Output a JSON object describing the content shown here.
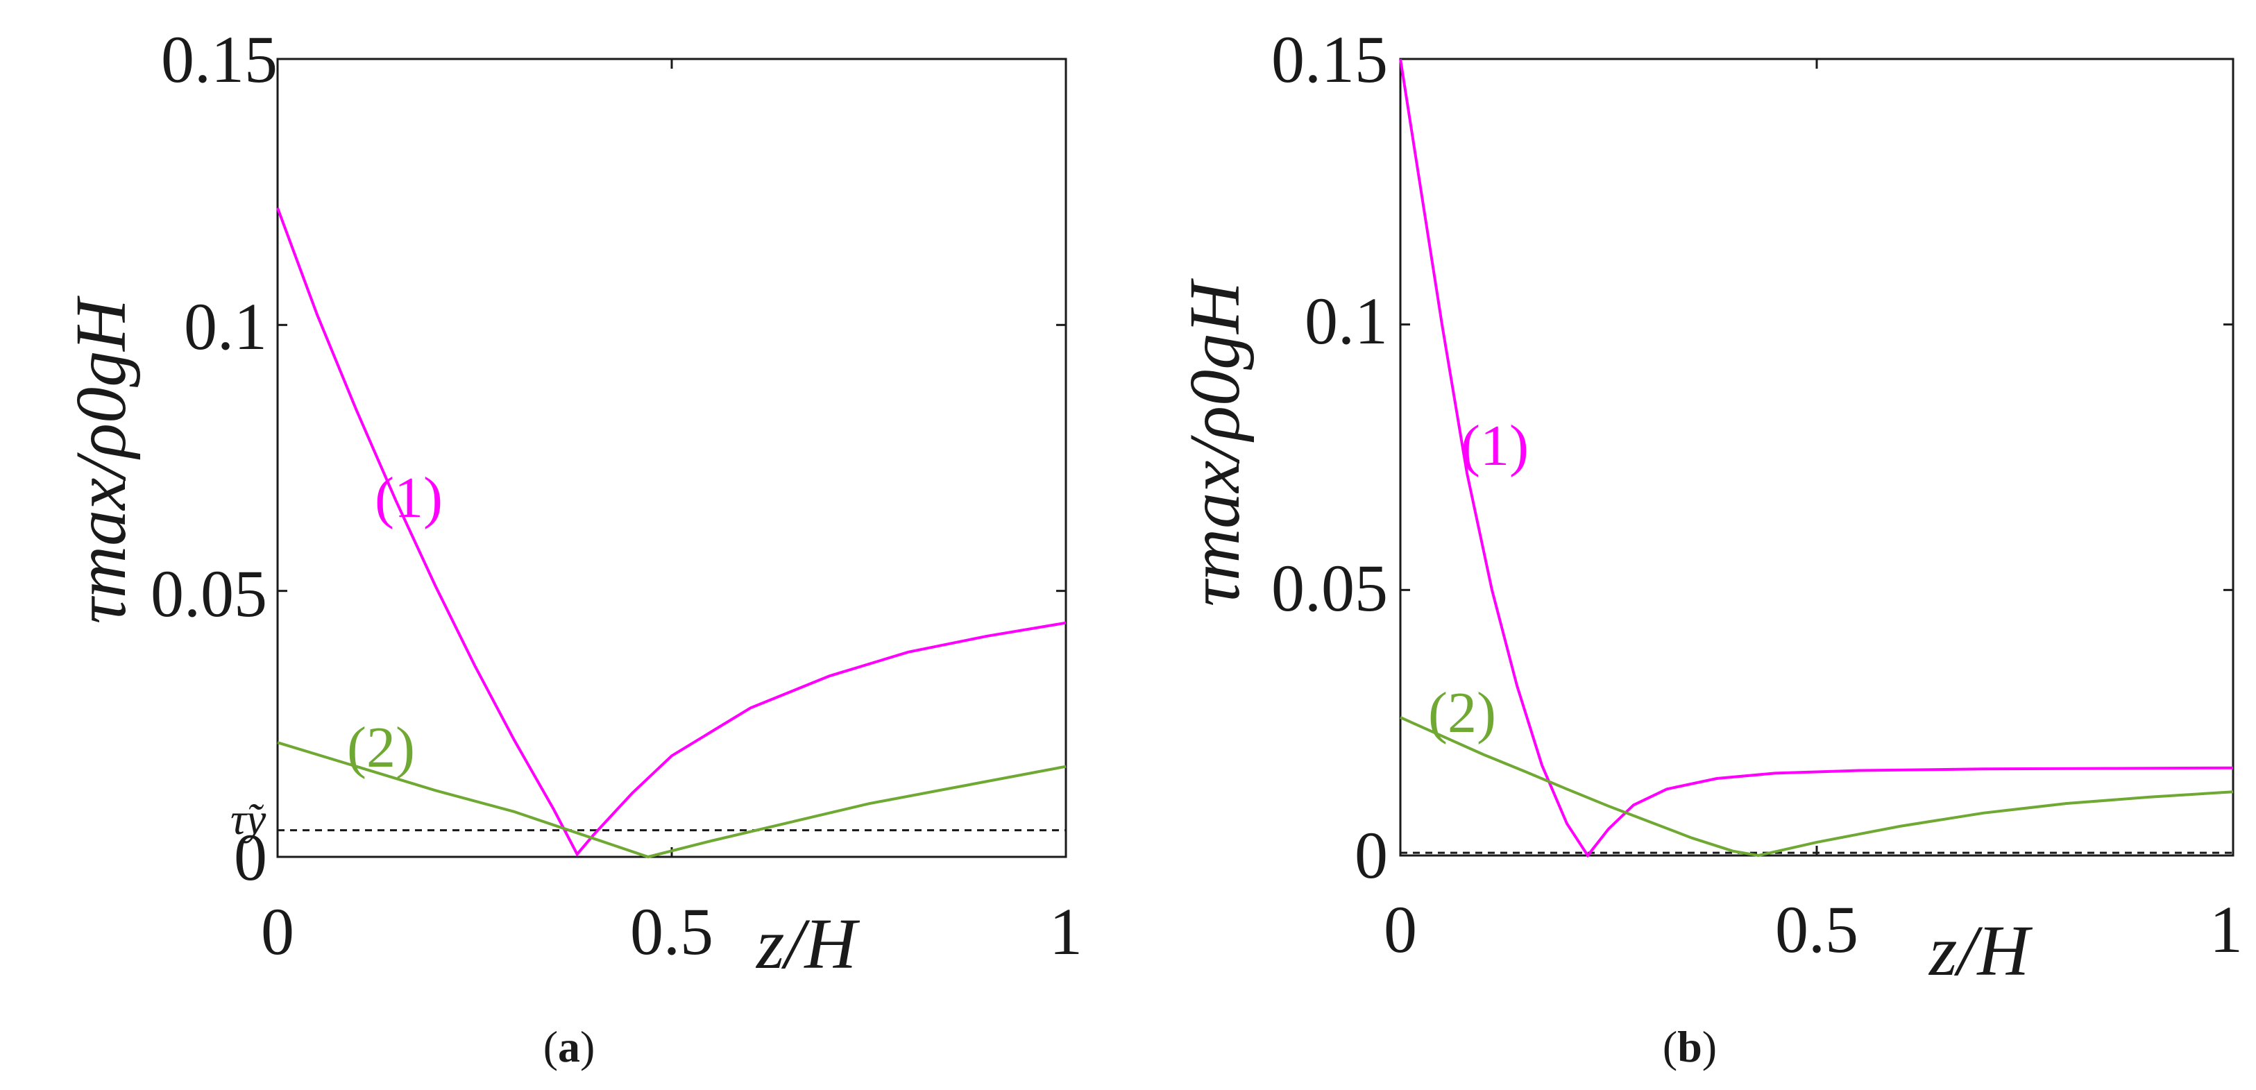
{
  "chart_data": [
    {
      "type": "line",
      "panel": "(a)",
      "panel_letter": "a",
      "xlabel": "z/H",
      "ylabel": "τmax/ρ0gH",
      "xlim": [
        0,
        1
      ],
      "ylim": [
        0,
        0.15
      ],
      "xticks": [
        "0",
        "0.5",
        "1"
      ],
      "yticks": [
        "0",
        "0.05",
        "0.1",
        "0.15"
      ],
      "threshold": {
        "label": "τ̃y",
        "value": 0.005,
        "style": "dashed"
      },
      "series": [
        {
          "name": "(1)",
          "color": "#ff00ff",
          "x": [
            0,
            0.05,
            0.1,
            0.15,
            0.2,
            0.25,
            0.3,
            0.35,
            0.38,
            0.4,
            0.45,
            0.5,
            0.6,
            0.7,
            0.8,
            0.9,
            1.0
          ],
          "y": [
            0.122,
            0.102,
            0.084,
            0.067,
            0.051,
            0.036,
            0.022,
            0.009,
            0.0005,
            0.004,
            0.012,
            0.019,
            0.028,
            0.034,
            0.0385,
            0.0415,
            0.044
          ]
        },
        {
          "name": "(2)",
          "color": "#6fa832",
          "x": [
            0,
            0.1,
            0.2,
            0.3,
            0.4,
            0.47,
            0.55,
            0.65,
            0.75,
            0.85,
            1.0
          ],
          "y": [
            0.0215,
            0.017,
            0.0125,
            0.0085,
            0.0035,
            0.0,
            0.003,
            0.0065,
            0.01,
            0.0128,
            0.017
          ]
        }
      ]
    },
    {
      "type": "line",
      "panel": "(b)",
      "panel_letter": "b",
      "xlabel": "z/H",
      "ylabel": "τmax/ρ0gH",
      "xlim": [
        0,
        1
      ],
      "ylim": [
        0,
        0.15
      ],
      "xticks": [
        "0",
        "0.5",
        "1"
      ],
      "yticks": [
        "0",
        "0.05",
        "0.1",
        "0.15"
      ],
      "threshold": {
        "label": "",
        "value": 0.0005,
        "style": "dashed"
      },
      "series": [
        {
          "name": "(1)",
          "color": "#ff00ff",
          "x": [
            0,
            0.02,
            0.05,
            0.08,
            0.11,
            0.14,
            0.17,
            0.2,
            0.225,
            0.25,
            0.28,
            0.32,
            0.38,
            0.45,
            0.55,
            0.7,
            0.85,
            1.0
          ],
          "y": [
            0.15,
            0.13,
            0.1,
            0.072,
            0.05,
            0.032,
            0.017,
            0.006,
            0.0,
            0.005,
            0.0095,
            0.0125,
            0.0145,
            0.0155,
            0.016,
            0.0163,
            0.0164,
            0.0165
          ]
        },
        {
          "name": "(2)",
          "color": "#6fa832",
          "x": [
            0,
            0.05,
            0.1,
            0.15,
            0.2,
            0.25,
            0.3,
            0.35,
            0.4,
            0.43,
            0.5,
            0.6,
            0.7,
            0.8,
            0.9,
            1.0
          ],
          "y": [
            0.026,
            0.0225,
            0.019,
            0.0158,
            0.0125,
            0.0093,
            0.0063,
            0.0033,
            0.0008,
            0.0,
            0.0025,
            0.0055,
            0.008,
            0.0098,
            0.011,
            0.012
          ]
        }
      ]
    }
  ]
}
